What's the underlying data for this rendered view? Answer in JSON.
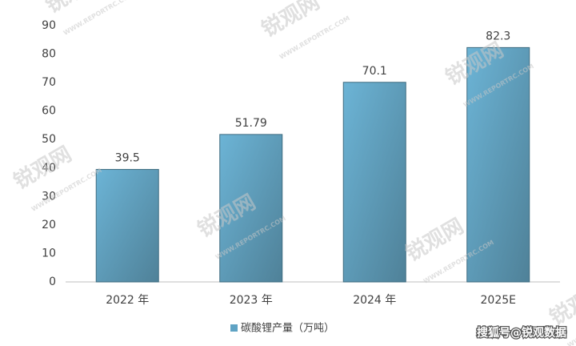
{
  "chart_data": {
    "type": "bar",
    "categories": [
      "2022 年",
      "2023 年",
      "2024 年",
      "2025E"
    ],
    "series": [
      {
        "name": "碳酸锂产量（万吨）",
        "color": "#5fa3c4",
        "values": [
          39.5,
          51.79,
          70.1,
          82.3
        ]
      }
    ],
    "ylim": [
      0,
      90
    ],
    "yticks": [
      0,
      10,
      20,
      30,
      40,
      50,
      60,
      70,
      80,
      90
    ],
    "grid": false,
    "legend": "bottom",
    "watermarks": [
      "锐观网",
      "WWW.REPORTRC.COM"
    ],
    "source": "搜狐号@锐观数据"
  }
}
